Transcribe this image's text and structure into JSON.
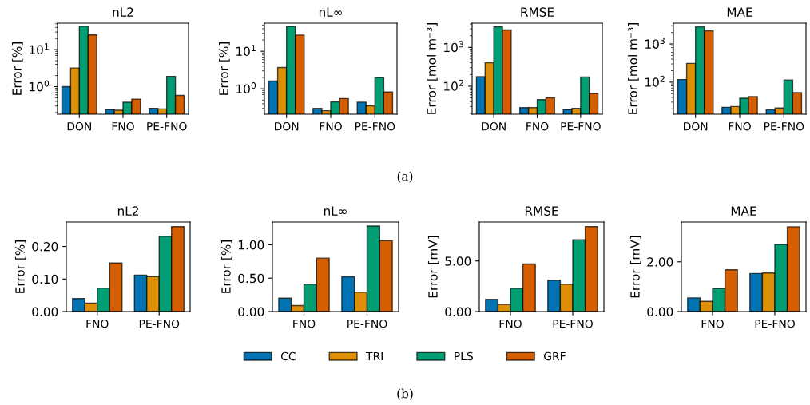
{
  "chart_data": [
    {
      "type": "bar",
      "title": "nL2",
      "ylabel": "Error [%]",
      "categories": [
        "DON",
        "FNO",
        "PE-FNO"
      ],
      "log": true,
      "ylim": [
        0.18,
        52
      ],
      "yticks": [
        {
          "value": 1,
          "label": "10$^{0}$"
        },
        {
          "value": 10,
          "label": "10$^{1}$"
        }
      ],
      "legend": "bottom",
      "annotations": [
        "(a)"
      ],
      "series": [
        {
          "name": "CC",
          "color": "#0173b2",
          "values": [
            1.0,
            0.24,
            0.26
          ]
        },
        {
          "name": "TRI",
          "color": "#de8f05",
          "values": [
            3.2,
            0.23,
            0.25
          ]
        },
        {
          "name": "PLS",
          "color": "#029e73",
          "values": [
            43,
            0.38,
            1.9
          ]
        },
        {
          "name": "GRF",
          "color": "#d55e00",
          "values": [
            25,
            0.46,
            0.58
          ]
        }
      ]
    },
    {
      "type": "bar",
      "title": "nL∞",
      "ylabel": "Error [%]",
      "categories": [
        "DON",
        "FNO",
        "PE-FNO"
      ],
      "log": true,
      "ylim": [
        0.21,
        56
      ],
      "yticks": [
        {
          "value": 1,
          "label": "10$^{0}$"
        },
        {
          "value": 10,
          "label": "10$^{1}$"
        }
      ],
      "series": [
        {
          "color": "#0173b2",
          "values": [
            1.6,
            0.3,
            0.44
          ]
        },
        {
          "color": "#de8f05",
          "values": [
            3.7,
            0.26,
            0.35
          ]
        },
        {
          "color": "#029e73",
          "values": [
            46,
            0.45,
            2.0
          ]
        },
        {
          "color": "#d55e00",
          "values": [
            27,
            0.55,
            0.82
          ]
        }
      ]
    },
    {
      "type": "bar",
      "title": "RMSE",
      "ylabel": "Error [mol m⁻³]",
      "categories": [
        "DON",
        "FNO",
        "PE-FNO"
      ],
      "log": true,
      "ylim": [
        19,
        4200
      ],
      "yticks": [
        {
          "value": 100,
          "label": "10$^{2}$"
        },
        {
          "value": 1000,
          "label": "10$^{3}$"
        }
      ],
      "series": [
        {
          "color": "#0173b2",
          "values": [
            176,
            28,
            25
          ]
        },
        {
          "color": "#de8f05",
          "values": [
            400,
            28,
            27
          ]
        },
        {
          "color": "#029e73",
          "values": [
            3400,
            45,
            173
          ]
        },
        {
          "color": "#d55e00",
          "values": [
            2800,
            50,
            65
          ]
        }
      ]
    },
    {
      "type": "bar",
      "title": "MAE",
      "ylabel": "Error [mol m⁻³]",
      "categories": [
        "DON",
        "FNO",
        "PE-FNO"
      ],
      "log": true,
      "ylim": [
        14.5,
        3500
      ],
      "yticks": [
        {
          "value": 100,
          "label": "10$^{2}$"
        },
        {
          "value": 1000,
          "label": "10$^{3}$"
        }
      ],
      "series": [
        {
          "color": "#0173b2",
          "values": [
            117,
            22,
            19
          ]
        },
        {
          "color": "#de8f05",
          "values": [
            310,
            23,
            21
          ]
        },
        {
          "color": "#029e73",
          "values": [
            2800,
            38,
            114
          ]
        },
        {
          "color": "#d55e00",
          "values": [
            2200,
            42,
            53
          ]
        }
      ]
    },
    {
      "type": "bar",
      "title": "nL2",
      "ylabel": "Error [%]",
      "categories": [
        "FNO",
        "PE-FNO"
      ],
      "ylim": [
        0,
        0.275
      ],
      "yticks": [
        {
          "value": 0,
          "label": "0.00"
        },
        {
          "value": 0.1,
          "label": "0.10"
        },
        {
          "value": 0.2,
          "label": "0.20"
        }
      ],
      "annotations": [
        "(b)"
      ],
      "series": [
        {
          "color": "#0173b2",
          "values": [
            0.04,
            0.112
          ]
        },
        {
          "color": "#de8f05",
          "values": [
            0.026,
            0.107
          ]
        },
        {
          "color": "#029e73",
          "values": [
            0.072,
            0.231
          ]
        },
        {
          "color": "#d55e00",
          "values": [
            0.149,
            0.261
          ]
        }
      ]
    },
    {
      "type": "bar",
      "title": "nL∞",
      "ylabel": "Error [%]",
      "categories": [
        "FNO",
        "PE-FNO"
      ],
      "ylim": [
        0,
        1.34
      ],
      "yticks": [
        {
          "value": 0,
          "label": "0.00"
        },
        {
          "value": 0.5,
          "label": "0.50"
        },
        {
          "value": 1,
          "label": "1.00"
        }
      ],
      "series": [
        {
          "color": "#0173b2",
          "values": [
            0.2,
            0.52
          ]
        },
        {
          "color": "#de8f05",
          "values": [
            0.09,
            0.29
          ]
        },
        {
          "color": "#029e73",
          "values": [
            0.41,
            1.28
          ]
        },
        {
          "color": "#d55e00",
          "values": [
            0.8,
            1.06
          ]
        }
      ]
    },
    {
      "type": "bar",
      "title": "RMSE",
      "ylabel": "Error [mV]",
      "categories": [
        "FNO",
        "PE-FNO"
      ],
      "ylim": [
        0,
        8.85
      ],
      "yticks": [
        {
          "value": 0,
          "label": "0.00"
        },
        {
          "value": 5,
          "label": "5.00"
        }
      ],
      "series": [
        {
          "color": "#0173b2",
          "values": [
            1.2,
            3.1
          ]
        },
        {
          "color": "#de8f05",
          "values": [
            0.7,
            2.7
          ]
        },
        {
          "color": "#029e73",
          "values": [
            2.3,
            7.1
          ]
        },
        {
          "color": "#d55e00",
          "values": [
            4.7,
            8.4
          ]
        }
      ]
    },
    {
      "type": "bar",
      "title": "MAE",
      "ylabel": "Error [mV]",
      "categories": [
        "FNO",
        "PE-FNO"
      ],
      "ylim": [
        0,
        3.6
      ],
      "yticks": [
        {
          "value": 0,
          "label": "0.00"
        },
        {
          "value": 2,
          "label": "2.00"
        }
      ],
      "series": [
        {
          "color": "#0173b2",
          "values": [
            0.55,
            1.53
          ]
        },
        {
          "color": "#de8f05",
          "values": [
            0.41,
            1.55
          ]
        },
        {
          "color": "#029e73",
          "values": [
            0.93,
            2.7
          ]
        },
        {
          "color": "#d55e00",
          "values": [
            1.68,
            3.41
          ]
        }
      ]
    }
  ]
}
